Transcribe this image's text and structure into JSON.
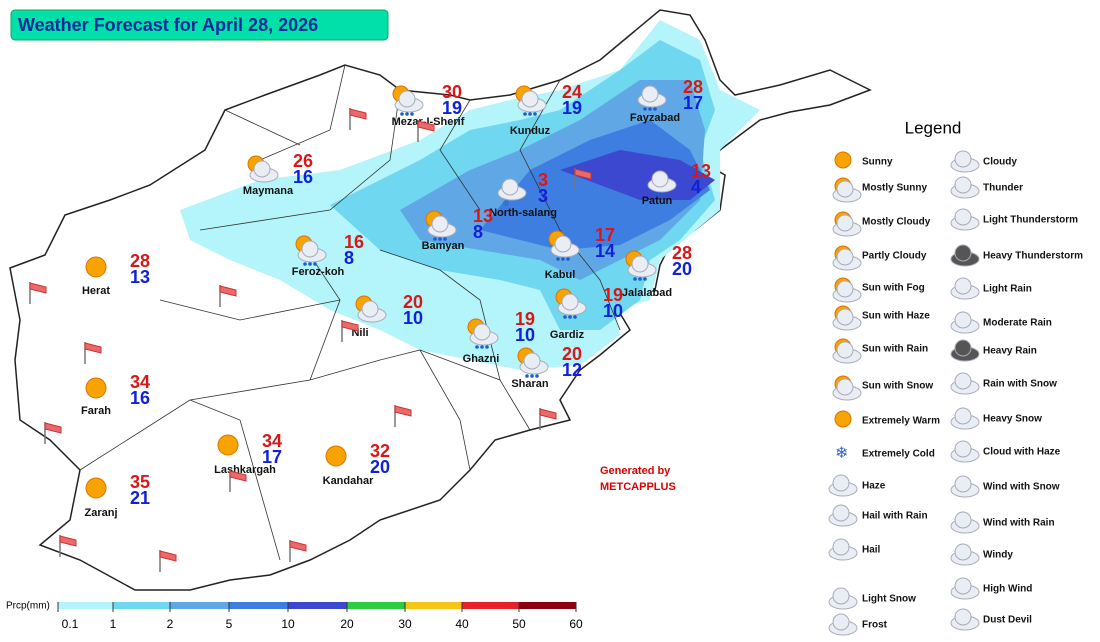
{
  "header": {
    "title": "Weather Forecast for April 28, 2026"
  },
  "cities": [
    {
      "name": "Mezar-I-Sherif",
      "max": 30,
      "min": 19
    },
    {
      "name": "Kunduz",
      "max": 24,
      "min": 19
    },
    {
      "name": "Fayzabad",
      "max": 28,
      "min": 17
    },
    {
      "name": "Maymana",
      "max": 26,
      "min": 16
    },
    {
      "name": "North-salang",
      "max": 3,
      "min": 3
    },
    {
      "name": "Patun",
      "max": 13,
      "min": 4
    },
    {
      "name": "Bamyan",
      "max": 13,
      "min": 8
    },
    {
      "name": "Feroz-koh",
      "max": 16,
      "min": 8
    },
    {
      "name": "Kabul",
      "max": 17,
      "min": 14
    },
    {
      "name": "Herat",
      "max": 28,
      "min": 13
    },
    {
      "name": "Jalalabad",
      "max": 28,
      "min": 20
    },
    {
      "name": "Nili",
      "max": 20,
      "min": 10
    },
    {
      "name": "Gardiz",
      "max": 19,
      "min": 10
    },
    {
      "name": "Ghazni",
      "max": 19,
      "min": 10
    },
    {
      "name": "Sharan",
      "max": 20,
      "min": 12
    },
    {
      "name": "Farah",
      "max": 34,
      "min": 16
    },
    {
      "name": "Lashkargah",
      "max": 34,
      "min": 17
    },
    {
      "name": "Kandahar",
      "max": 32,
      "min": 20
    },
    {
      "name": "Zaranj",
      "max": 35,
      "min": 21
    }
  ],
  "legend": {
    "title": "Legend",
    "left": [
      "Sunny",
      "Mostly Sunny",
      "Mostly Cloudy",
      "Partly Cloudy",
      "Sun with Fog",
      "Sun with Haze",
      "Sun with Rain",
      "Sun with Snow",
      "Extremely Warm",
      "Extremely Cold",
      "Haze",
      "Hail with Rain",
      "Hail",
      "Light Snow",
      "Frost"
    ],
    "right": [
      "Cloudy",
      "Thunder",
      "Light Thunderstorm",
      "Heavy Thunderstorm",
      "Light Rain",
      "Moderate Rain",
      "Heavy Rain",
      "Rain with Snow",
      "Heavy Snow",
      "Cloud with Haze",
      "Wind with Snow",
      "Wind with Rain",
      "Windy",
      "High Wind",
      "Dust Devil"
    ]
  },
  "scale": {
    "label": "Prcp(mm)",
    "ticks": [
      0.1,
      1,
      2,
      5,
      10,
      20,
      30,
      40,
      50,
      60
    ],
    "colors": [
      "#b3f5fb",
      "#6fd7ef",
      "#5fa8e5",
      "#3d7ee0",
      "#3c48d0",
      "#2ecc40",
      "#f5c518",
      "#e8202a",
      "#8b0010"
    ]
  },
  "credit": {
    "line1": "Generated by",
    "line2": "METCAPPLUS"
  }
}
